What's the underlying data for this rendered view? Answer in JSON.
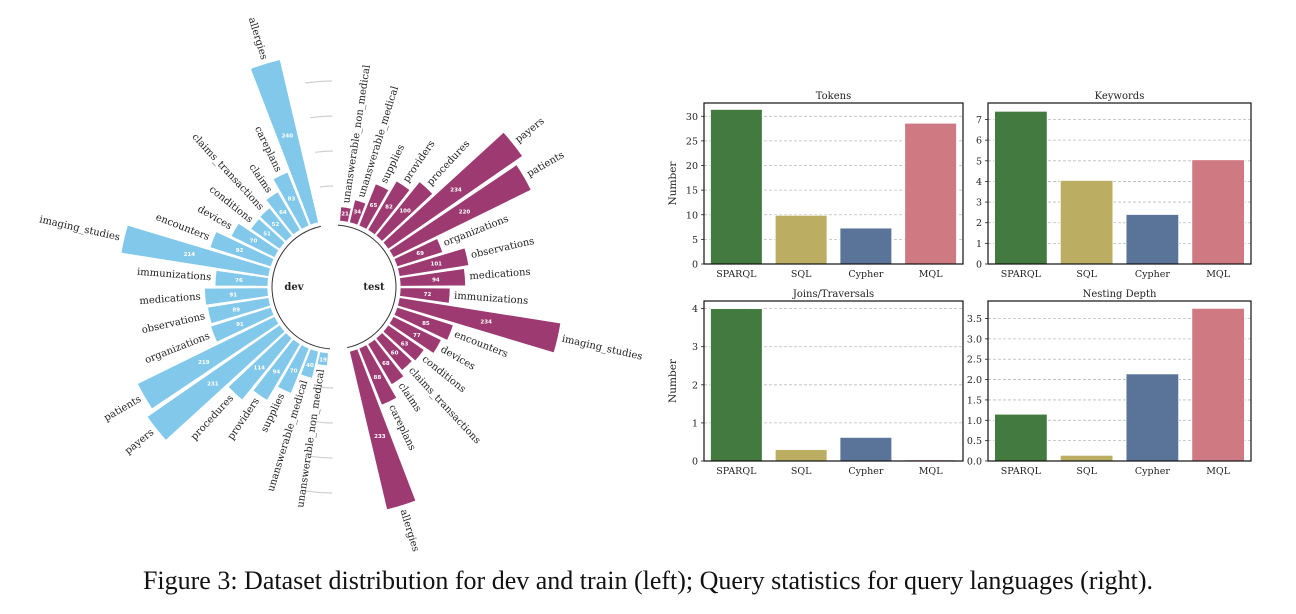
{
  "caption": "Figure 3: Dataset distribution for dev and train (left); Query statistics for query languages (right).",
  "colors": {
    "dev": "#82C8EA",
    "test": "#9E3A72",
    "SPARQL": "#437A3F",
    "SQL": "#BBAE63",
    "Cypher": "#5A7499",
    "MQL": "#CF7A83"
  },
  "chart_data": [
    {
      "type": "bar",
      "subtype": "circular-bar",
      "categories": [
        "allergies",
        "careplans",
        "claims",
        "claims_transactions",
        "conditions",
        "devices",
        "encounters",
        "imaging_studies",
        "immunizations",
        "medications",
        "observations",
        "organizations",
        "patients",
        "payers",
        "procedures",
        "providers",
        "supplies",
        "unanswerable_medical",
        "unanswerable_non_medical"
      ],
      "series": [
        {
          "name": "dev",
          "values": [
            240,
            83,
            64,
            52,
            51,
            70,
            92,
            214,
            76,
            91,
            89,
            91,
            219,
            231,
            114,
            94,
            70,
            40,
            19
          ]
        },
        {
          "name": "test",
          "values": [
            233,
            88,
            68,
            60,
            63,
            77,
            85,
            234,
            72,
            94,
            101,
            69,
            220,
            234,
            100,
            82,
            65,
            34,
            21
          ]
        }
      ],
      "radial_grid": [
        50,
        100,
        150,
        200
      ],
      "data_labels": true
    },
    {
      "type": "bar",
      "title": "Tokens",
      "ylabel": "Number",
      "categories": [
        "SPARQL",
        "SQL",
        "Cypher",
        "MQL"
      ],
      "values": [
        31.4,
        9.9,
        7.3,
        28.6
      ],
      "ylim": [
        0,
        32.7
      ],
      "yticks": [
        0,
        5,
        10,
        15,
        20,
        25,
        30
      ],
      "grid": "y-dashed"
    },
    {
      "type": "bar",
      "title": "Keywords",
      "ylabel": "",
      "categories": [
        "SPARQL",
        "SQL",
        "Cypher",
        "MQL"
      ],
      "values": [
        7.4,
        4.05,
        2.4,
        5.05
      ],
      "ylim": [
        0,
        7.8
      ],
      "yticks": [
        0,
        1,
        2,
        3,
        4,
        5,
        6,
        7
      ],
      "grid": "y-dashed"
    },
    {
      "type": "bar",
      "title": "Joins/Traversals",
      "ylabel": "Number",
      "categories": [
        "SPARQL",
        "SQL",
        "Cypher",
        "MQL"
      ],
      "values": [
        4.0,
        0.3,
        0.62,
        0.03
      ],
      "ylim": [
        0,
        4.2
      ],
      "yticks": [
        0,
        1,
        2,
        3,
        4
      ],
      "grid": "y-dashed"
    },
    {
      "type": "bar",
      "title": "Nesting Depth",
      "ylabel": "",
      "categories": [
        "SPARQL",
        "SQL",
        "Cypher",
        "MQL"
      ],
      "values": [
        1.15,
        0.14,
        2.14,
        3.75
      ],
      "ylim": [
        0,
        3.93
      ],
      "yticks": [
        "0.0",
        "0.5",
        "1.0",
        "1.5",
        "2.0",
        "2.5",
        "3.0",
        "3.5"
      ],
      "grid": "y-dashed"
    }
  ]
}
